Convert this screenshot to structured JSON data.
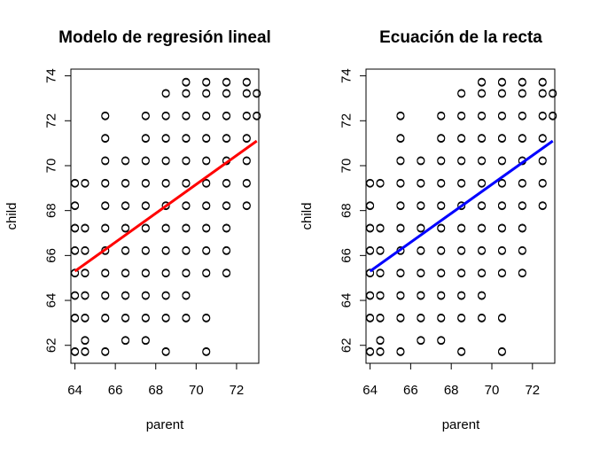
{
  "chart_data": [
    {
      "type": "scatter",
      "title": "Modelo de regresión lineal",
      "xlabel": "parent",
      "ylabel": "child",
      "xlim": [
        63.8,
        73.1
      ],
      "ylim": [
        61.2,
        74.3
      ],
      "xticks": [
        64,
        66,
        68,
        70,
        72
      ],
      "yticks": [
        62,
        64,
        66,
        68,
        70,
        72,
        74
      ],
      "grid": false,
      "line_color": "#ff0000",
      "regression_line": {
        "x": [
          64.0,
          73.0
        ],
        "y": [
          65.3,
          71.1
        ]
      },
      "points": [
        [
          64.0,
          61.7
        ],
        [
          64.5,
          61.7
        ],
        [
          65.5,
          61.7
        ],
        [
          68.5,
          61.7
        ],
        [
          70.5,
          61.7
        ],
        [
          64.5,
          62.2
        ],
        [
          66.5,
          62.2
        ],
        [
          67.5,
          62.2
        ],
        [
          64.0,
          63.2
        ],
        [
          64.5,
          63.2
        ],
        [
          65.5,
          63.2
        ],
        [
          66.5,
          63.2
        ],
        [
          67.5,
          63.2
        ],
        [
          68.5,
          63.2
        ],
        [
          69.5,
          63.2
        ],
        [
          70.5,
          63.2
        ],
        [
          64.0,
          64.2
        ],
        [
          64.5,
          64.2
        ],
        [
          65.5,
          64.2
        ],
        [
          66.5,
          64.2
        ],
        [
          67.5,
          64.2
        ],
        [
          68.5,
          64.2
        ],
        [
          69.5,
          64.2
        ],
        [
          64.0,
          65.2
        ],
        [
          64.5,
          65.2
        ],
        [
          65.5,
          65.2
        ],
        [
          66.5,
          65.2
        ],
        [
          67.5,
          65.2
        ],
        [
          68.5,
          65.2
        ],
        [
          69.5,
          65.2
        ],
        [
          70.5,
          65.2
        ],
        [
          71.5,
          65.2
        ],
        [
          64.0,
          66.2
        ],
        [
          64.5,
          66.2
        ],
        [
          65.5,
          66.2
        ],
        [
          66.5,
          66.2
        ],
        [
          67.5,
          66.2
        ],
        [
          68.5,
          66.2
        ],
        [
          69.5,
          66.2
        ],
        [
          70.5,
          66.2
        ],
        [
          71.5,
          66.2
        ],
        [
          64.0,
          67.2
        ],
        [
          64.5,
          67.2
        ],
        [
          65.5,
          67.2
        ],
        [
          66.5,
          67.2
        ],
        [
          67.5,
          67.2
        ],
        [
          68.5,
          67.2
        ],
        [
          69.5,
          67.2
        ],
        [
          70.5,
          67.2
        ],
        [
          71.5,
          67.2
        ],
        [
          64.0,
          68.2
        ],
        [
          65.5,
          68.2
        ],
        [
          66.5,
          68.2
        ],
        [
          67.5,
          68.2
        ],
        [
          68.5,
          68.2
        ],
        [
          69.5,
          68.2
        ],
        [
          70.5,
          68.2
        ],
        [
          71.5,
          68.2
        ],
        [
          72.5,
          68.2
        ],
        [
          64.0,
          69.2
        ],
        [
          64.5,
          69.2
        ],
        [
          65.5,
          69.2
        ],
        [
          66.5,
          69.2
        ],
        [
          67.5,
          69.2
        ],
        [
          68.5,
          69.2
        ],
        [
          69.5,
          69.2
        ],
        [
          70.5,
          69.2
        ],
        [
          71.5,
          69.2
        ],
        [
          72.5,
          69.2
        ],
        [
          65.5,
          70.2
        ],
        [
          66.5,
          70.2
        ],
        [
          67.5,
          70.2
        ],
        [
          68.5,
          70.2
        ],
        [
          69.5,
          70.2
        ],
        [
          70.5,
          70.2
        ],
        [
          71.5,
          70.2
        ],
        [
          72.5,
          70.2
        ],
        [
          65.5,
          71.2
        ],
        [
          67.5,
          71.2
        ],
        [
          68.5,
          71.2
        ],
        [
          69.5,
          71.2
        ],
        [
          70.5,
          71.2
        ],
        [
          71.5,
          71.2
        ],
        [
          72.5,
          71.2
        ],
        [
          65.5,
          72.2
        ],
        [
          67.5,
          72.2
        ],
        [
          68.5,
          72.2
        ],
        [
          69.5,
          72.2
        ],
        [
          70.5,
          72.2
        ],
        [
          71.5,
          72.2
        ],
        [
          72.5,
          72.2
        ],
        [
          73.0,
          72.2
        ],
        [
          68.5,
          73.2
        ],
        [
          69.5,
          73.2
        ],
        [
          70.5,
          73.2
        ],
        [
          71.5,
          73.2
        ],
        [
          72.5,
          73.2
        ],
        [
          73.0,
          73.2
        ],
        [
          69.5,
          73.7
        ],
        [
          70.5,
          73.7
        ],
        [
          71.5,
          73.7
        ],
        [
          72.5,
          73.7
        ]
      ]
    },
    {
      "type": "scatter",
      "title": "Ecuación de la recta",
      "xlabel": "parent",
      "ylabel": "child",
      "xlim": [
        63.8,
        73.1
      ],
      "ylim": [
        61.2,
        74.3
      ],
      "xticks": [
        64,
        66,
        68,
        70,
        72
      ],
      "yticks": [
        62,
        64,
        66,
        68,
        70,
        72,
        74
      ],
      "grid": false,
      "line_color": "#0000ff",
      "regression_line": {
        "x": [
          64.0,
          73.0
        ],
        "y": [
          65.3,
          71.1
        ]
      },
      "points": [
        [
          64.0,
          61.7
        ],
        [
          64.5,
          61.7
        ],
        [
          65.5,
          61.7
        ],
        [
          68.5,
          61.7
        ],
        [
          70.5,
          61.7
        ],
        [
          64.5,
          62.2
        ],
        [
          66.5,
          62.2
        ],
        [
          67.5,
          62.2
        ],
        [
          64.0,
          63.2
        ],
        [
          64.5,
          63.2
        ],
        [
          65.5,
          63.2
        ],
        [
          66.5,
          63.2
        ],
        [
          67.5,
          63.2
        ],
        [
          68.5,
          63.2
        ],
        [
          69.5,
          63.2
        ],
        [
          70.5,
          63.2
        ],
        [
          64.0,
          64.2
        ],
        [
          64.5,
          64.2
        ],
        [
          65.5,
          64.2
        ],
        [
          66.5,
          64.2
        ],
        [
          67.5,
          64.2
        ],
        [
          68.5,
          64.2
        ],
        [
          69.5,
          64.2
        ],
        [
          64.0,
          65.2
        ],
        [
          64.5,
          65.2
        ],
        [
          65.5,
          65.2
        ],
        [
          66.5,
          65.2
        ],
        [
          67.5,
          65.2
        ],
        [
          68.5,
          65.2
        ],
        [
          69.5,
          65.2
        ],
        [
          70.5,
          65.2
        ],
        [
          71.5,
          65.2
        ],
        [
          64.0,
          66.2
        ],
        [
          64.5,
          66.2
        ],
        [
          65.5,
          66.2
        ],
        [
          66.5,
          66.2
        ],
        [
          67.5,
          66.2
        ],
        [
          68.5,
          66.2
        ],
        [
          69.5,
          66.2
        ],
        [
          70.5,
          66.2
        ],
        [
          71.5,
          66.2
        ],
        [
          64.0,
          67.2
        ],
        [
          64.5,
          67.2
        ],
        [
          65.5,
          67.2
        ],
        [
          66.5,
          67.2
        ],
        [
          67.5,
          67.2
        ],
        [
          68.5,
          67.2
        ],
        [
          69.5,
          67.2
        ],
        [
          70.5,
          67.2
        ],
        [
          71.5,
          67.2
        ],
        [
          64.0,
          68.2
        ],
        [
          65.5,
          68.2
        ],
        [
          66.5,
          68.2
        ],
        [
          67.5,
          68.2
        ],
        [
          68.5,
          68.2
        ],
        [
          69.5,
          68.2
        ],
        [
          70.5,
          68.2
        ],
        [
          71.5,
          68.2
        ],
        [
          72.5,
          68.2
        ],
        [
          64.0,
          69.2
        ],
        [
          64.5,
          69.2
        ],
        [
          65.5,
          69.2
        ],
        [
          66.5,
          69.2
        ],
        [
          67.5,
          69.2
        ],
        [
          68.5,
          69.2
        ],
        [
          69.5,
          69.2
        ],
        [
          70.5,
          69.2
        ],
        [
          71.5,
          69.2
        ],
        [
          72.5,
          69.2
        ],
        [
          65.5,
          70.2
        ],
        [
          66.5,
          70.2
        ],
        [
          67.5,
          70.2
        ],
        [
          68.5,
          70.2
        ],
        [
          69.5,
          70.2
        ],
        [
          70.5,
          70.2
        ],
        [
          71.5,
          70.2
        ],
        [
          72.5,
          70.2
        ],
        [
          65.5,
          71.2
        ],
        [
          67.5,
          71.2
        ],
        [
          68.5,
          71.2
        ],
        [
          69.5,
          71.2
        ],
        [
          70.5,
          71.2
        ],
        [
          71.5,
          71.2
        ],
        [
          72.5,
          71.2
        ],
        [
          65.5,
          72.2
        ],
        [
          67.5,
          72.2
        ],
        [
          68.5,
          72.2
        ],
        [
          69.5,
          72.2
        ],
        [
          70.5,
          72.2
        ],
        [
          71.5,
          72.2
        ],
        [
          72.5,
          72.2
        ],
        [
          73.0,
          72.2
        ],
        [
          68.5,
          73.2
        ],
        [
          69.5,
          73.2
        ],
        [
          70.5,
          73.2
        ],
        [
          71.5,
          73.2
        ],
        [
          72.5,
          73.2
        ],
        [
          73.0,
          73.2
        ],
        [
          69.5,
          73.7
        ],
        [
          70.5,
          73.7
        ],
        [
          71.5,
          73.7
        ],
        [
          72.5,
          73.7
        ]
      ]
    }
  ]
}
